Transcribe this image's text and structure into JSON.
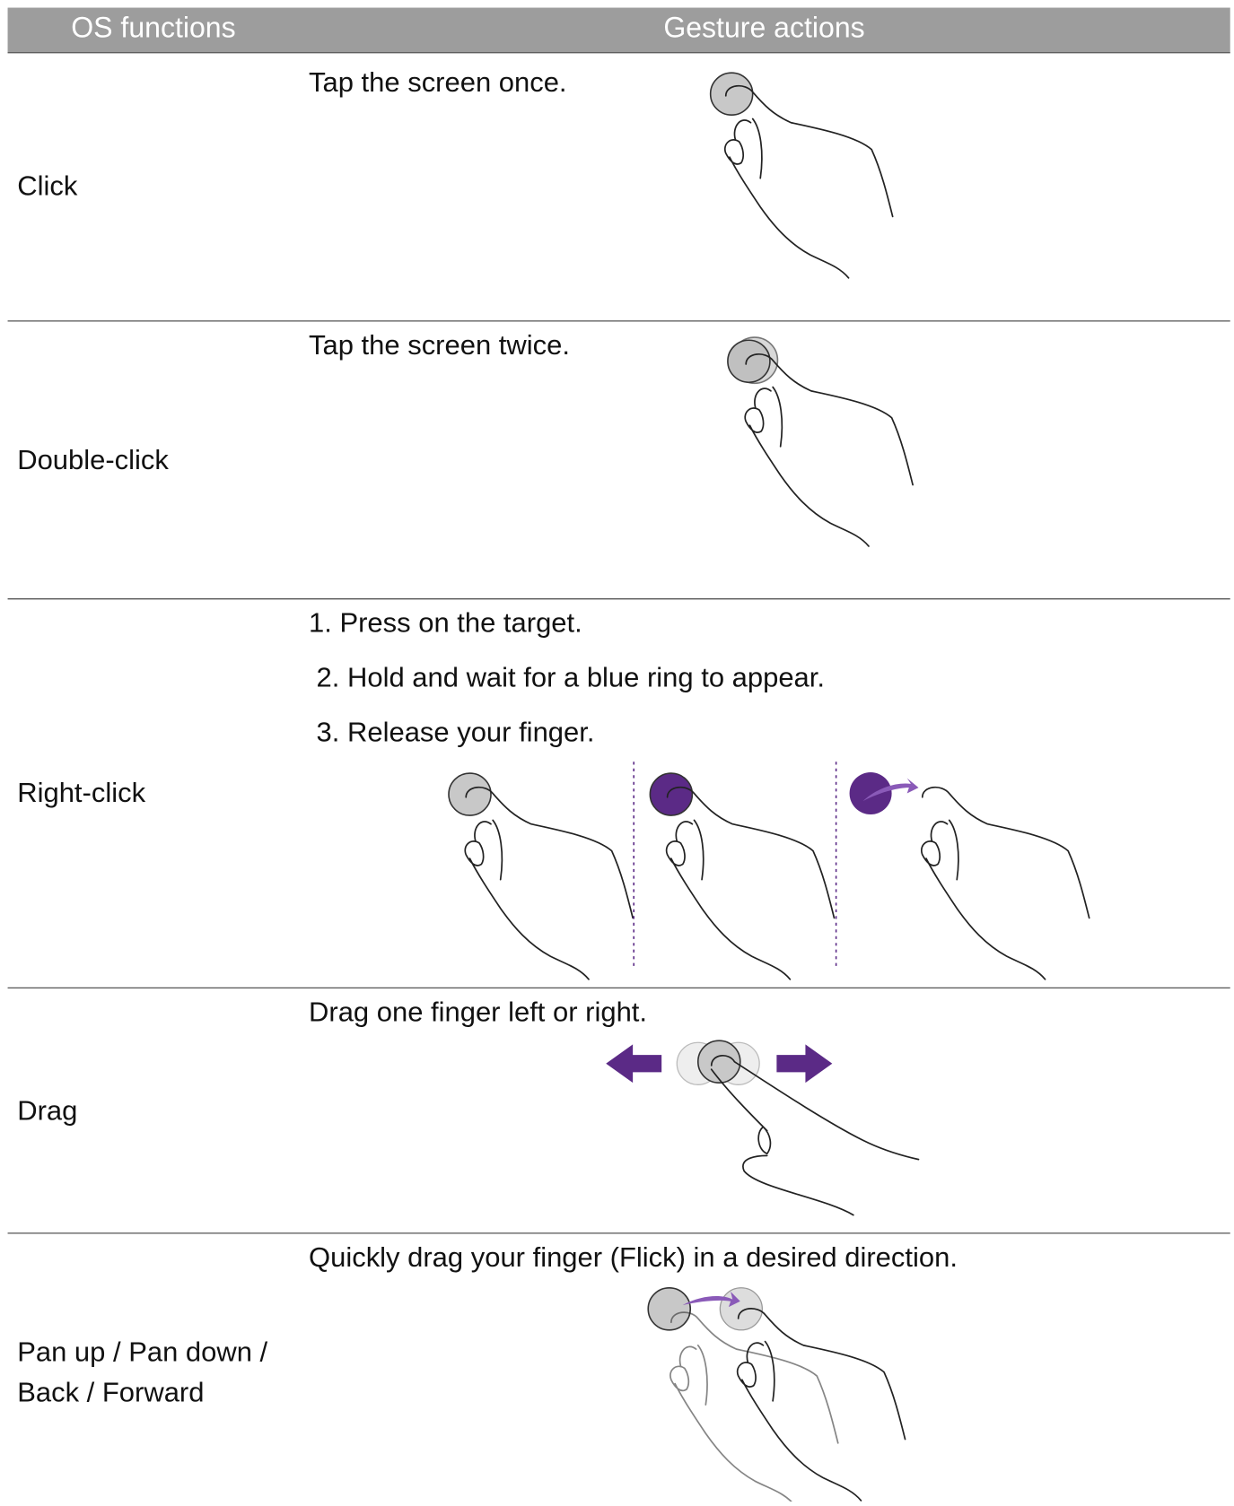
{
  "table": {
    "header": [
      "OS functions",
      "Gesture actions"
    ],
    "rows": [
      {
        "function": [
          "Click"
        ],
        "steps": [
          "Tap the screen once."
        ]
      },
      {
        "function": [
          "Double-click"
        ],
        "steps": [
          "Tap the screen twice."
        ]
      },
      {
        "function": [
          "Right-click"
        ],
        "steps": [
          "1. Press on the target.",
          "2. Hold and wait for a blue ring to appear.",
          "3. Release your finger."
        ]
      },
      {
        "function": [
          "Drag"
        ],
        "steps": [
          "Drag one finger left or right."
        ]
      },
      {
        "function": [
          "Pan up / Pan down /",
          "Back / Forward"
        ],
        "steps": [
          "Quickly drag your finger (Flick) in a desired direction."
        ]
      }
    ]
  }
}
